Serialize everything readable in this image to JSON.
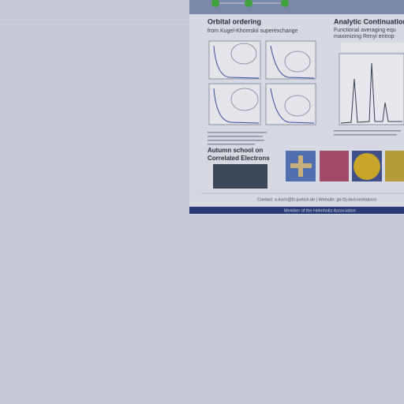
{
  "poster": {
    "left": {
      "title": "Orbital ordering",
      "subtitle": "from Kugel-Khomskii superexchange"
    },
    "right": {
      "title": "Analytic Continuation",
      "lines": [
        "Functional averaging equ",
        "maximizing Renyi entrop"
      ]
    },
    "school": {
      "lines": [
        "Autumn school on",
        "Correlated Electrons"
      ]
    },
    "contact": "Contact: a.koch@fz-juelich.de | Website: go.fzj.de/correlations",
    "footer": "Member of the Helmholtz Association"
  }
}
